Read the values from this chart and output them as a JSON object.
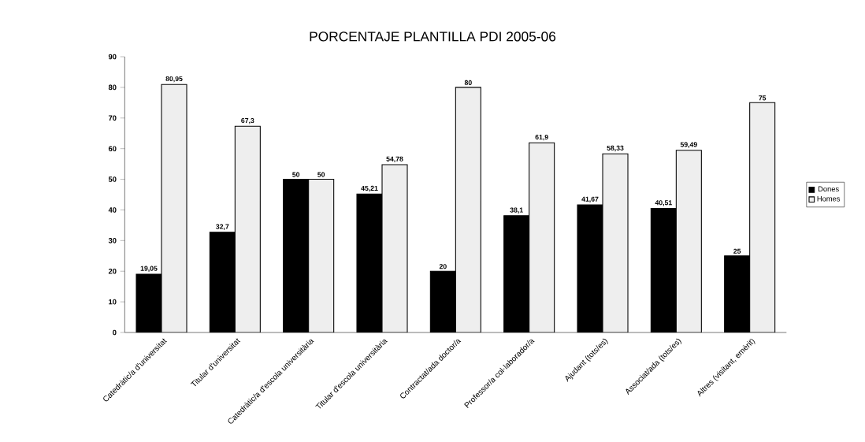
{
  "chart_data": {
    "type": "bar",
    "title": "PORCENTAJE PLANTILLA PDI 2005-06",
    "categories": [
      "Catedràtic/a d'universitat",
      "Titular d'universitat",
      "Catedràtic/a d'escola universitària",
      "Titular d'escola universitària",
      "Contractat/ada doctor/a",
      "Professor/a col·laborador/a",
      "Ajudant (tots/es)",
      "Associat/ada (tots/es)",
      "Altres (visitant, emèrit)"
    ],
    "series": [
      {
        "name": "Dones",
        "color": "#000000",
        "values": [
          19.05,
          32.7,
          50,
          45.21,
          20,
          38.1,
          41.67,
          40.51,
          25
        ],
        "value_labels": [
          "19,05",
          "32,7",
          "50",
          "45,21",
          "20",
          "38,1",
          "41,67",
          "40,51",
          "25"
        ]
      },
      {
        "name": "Homes",
        "color": "#eeeeee",
        "values": [
          80.95,
          67.3,
          50,
          54.78,
          80,
          61.9,
          58.33,
          59.49,
          75
        ],
        "value_labels": [
          "80,95",
          "67,3",
          "50",
          "54,78",
          "80",
          "61,9",
          "58,33",
          "59,49",
          "75"
        ]
      }
    ],
    "ylim": [
      0,
      90
    ],
    "yticks": [
      0,
      10,
      20,
      30,
      40,
      50,
      60,
      70,
      80,
      90
    ],
    "grid": false,
    "legend": "right"
  }
}
